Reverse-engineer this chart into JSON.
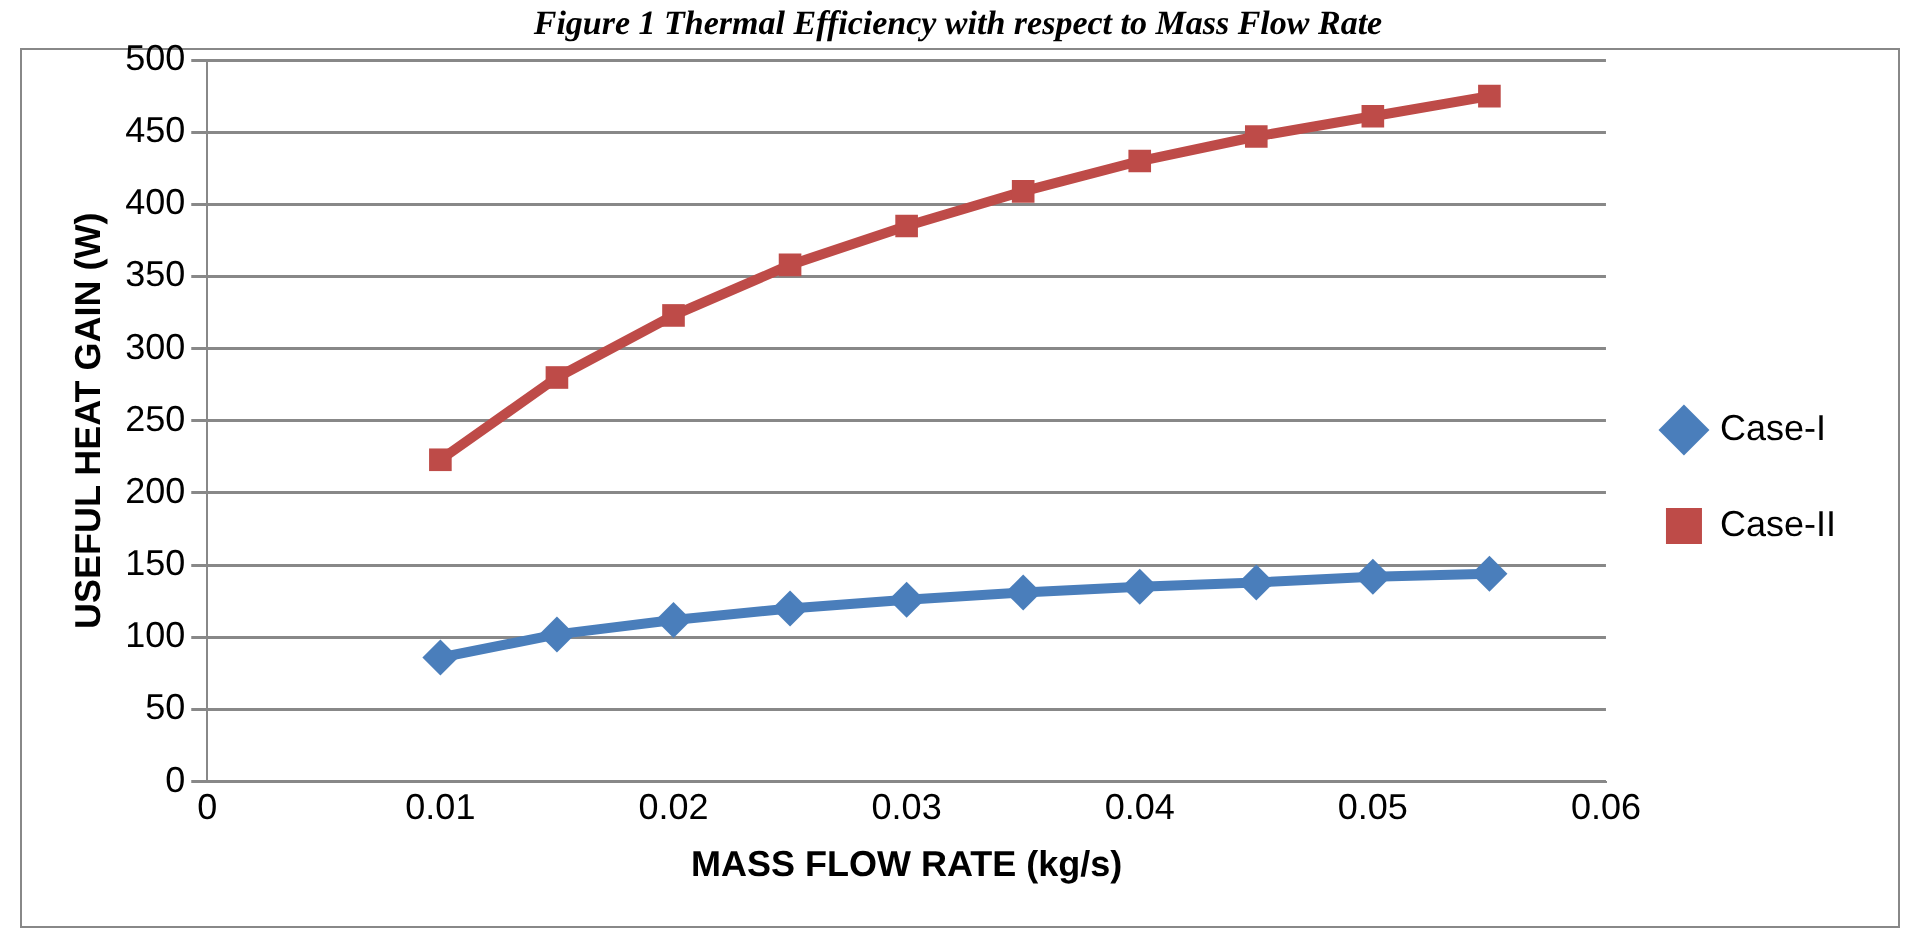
{
  "chart_data": {
    "type": "line",
    "title": "Figure 1 Thermal Efficiency with respect to Mass Flow Rate",
    "xlabel": "MASS FLOW RATE (kg/s)",
    "ylabel": "USEFUL HEAT GAIN (W)",
    "x": [
      0.01,
      0.015,
      0.02,
      0.025,
      0.03,
      0.035,
      0.04,
      0.045,
      0.05,
      0.055
    ],
    "series": [
      {
        "name": "Case-I",
        "color": "#4a7ebb",
        "marker": "diamond",
        "values": [
          86,
          102,
          112,
          120,
          126,
          131,
          135,
          138,
          142,
          144
        ]
      },
      {
        "name": "Case-II",
        "color": "#be4b48",
        "marker": "square",
        "values": [
          223,
          280,
          323,
          358,
          385,
          409,
          430,
          447,
          461,
          475
        ]
      }
    ],
    "xlim": [
      0,
      0.06
    ],
    "xticks": [
      0,
      0.01,
      0.02,
      0.03,
      0.04,
      0.05,
      0.06
    ],
    "ylim": [
      0,
      500
    ],
    "yticks": [
      0,
      50,
      100,
      150,
      200,
      250,
      300,
      350,
      400,
      450,
      500
    ],
    "grid": "y",
    "legend": "right"
  }
}
